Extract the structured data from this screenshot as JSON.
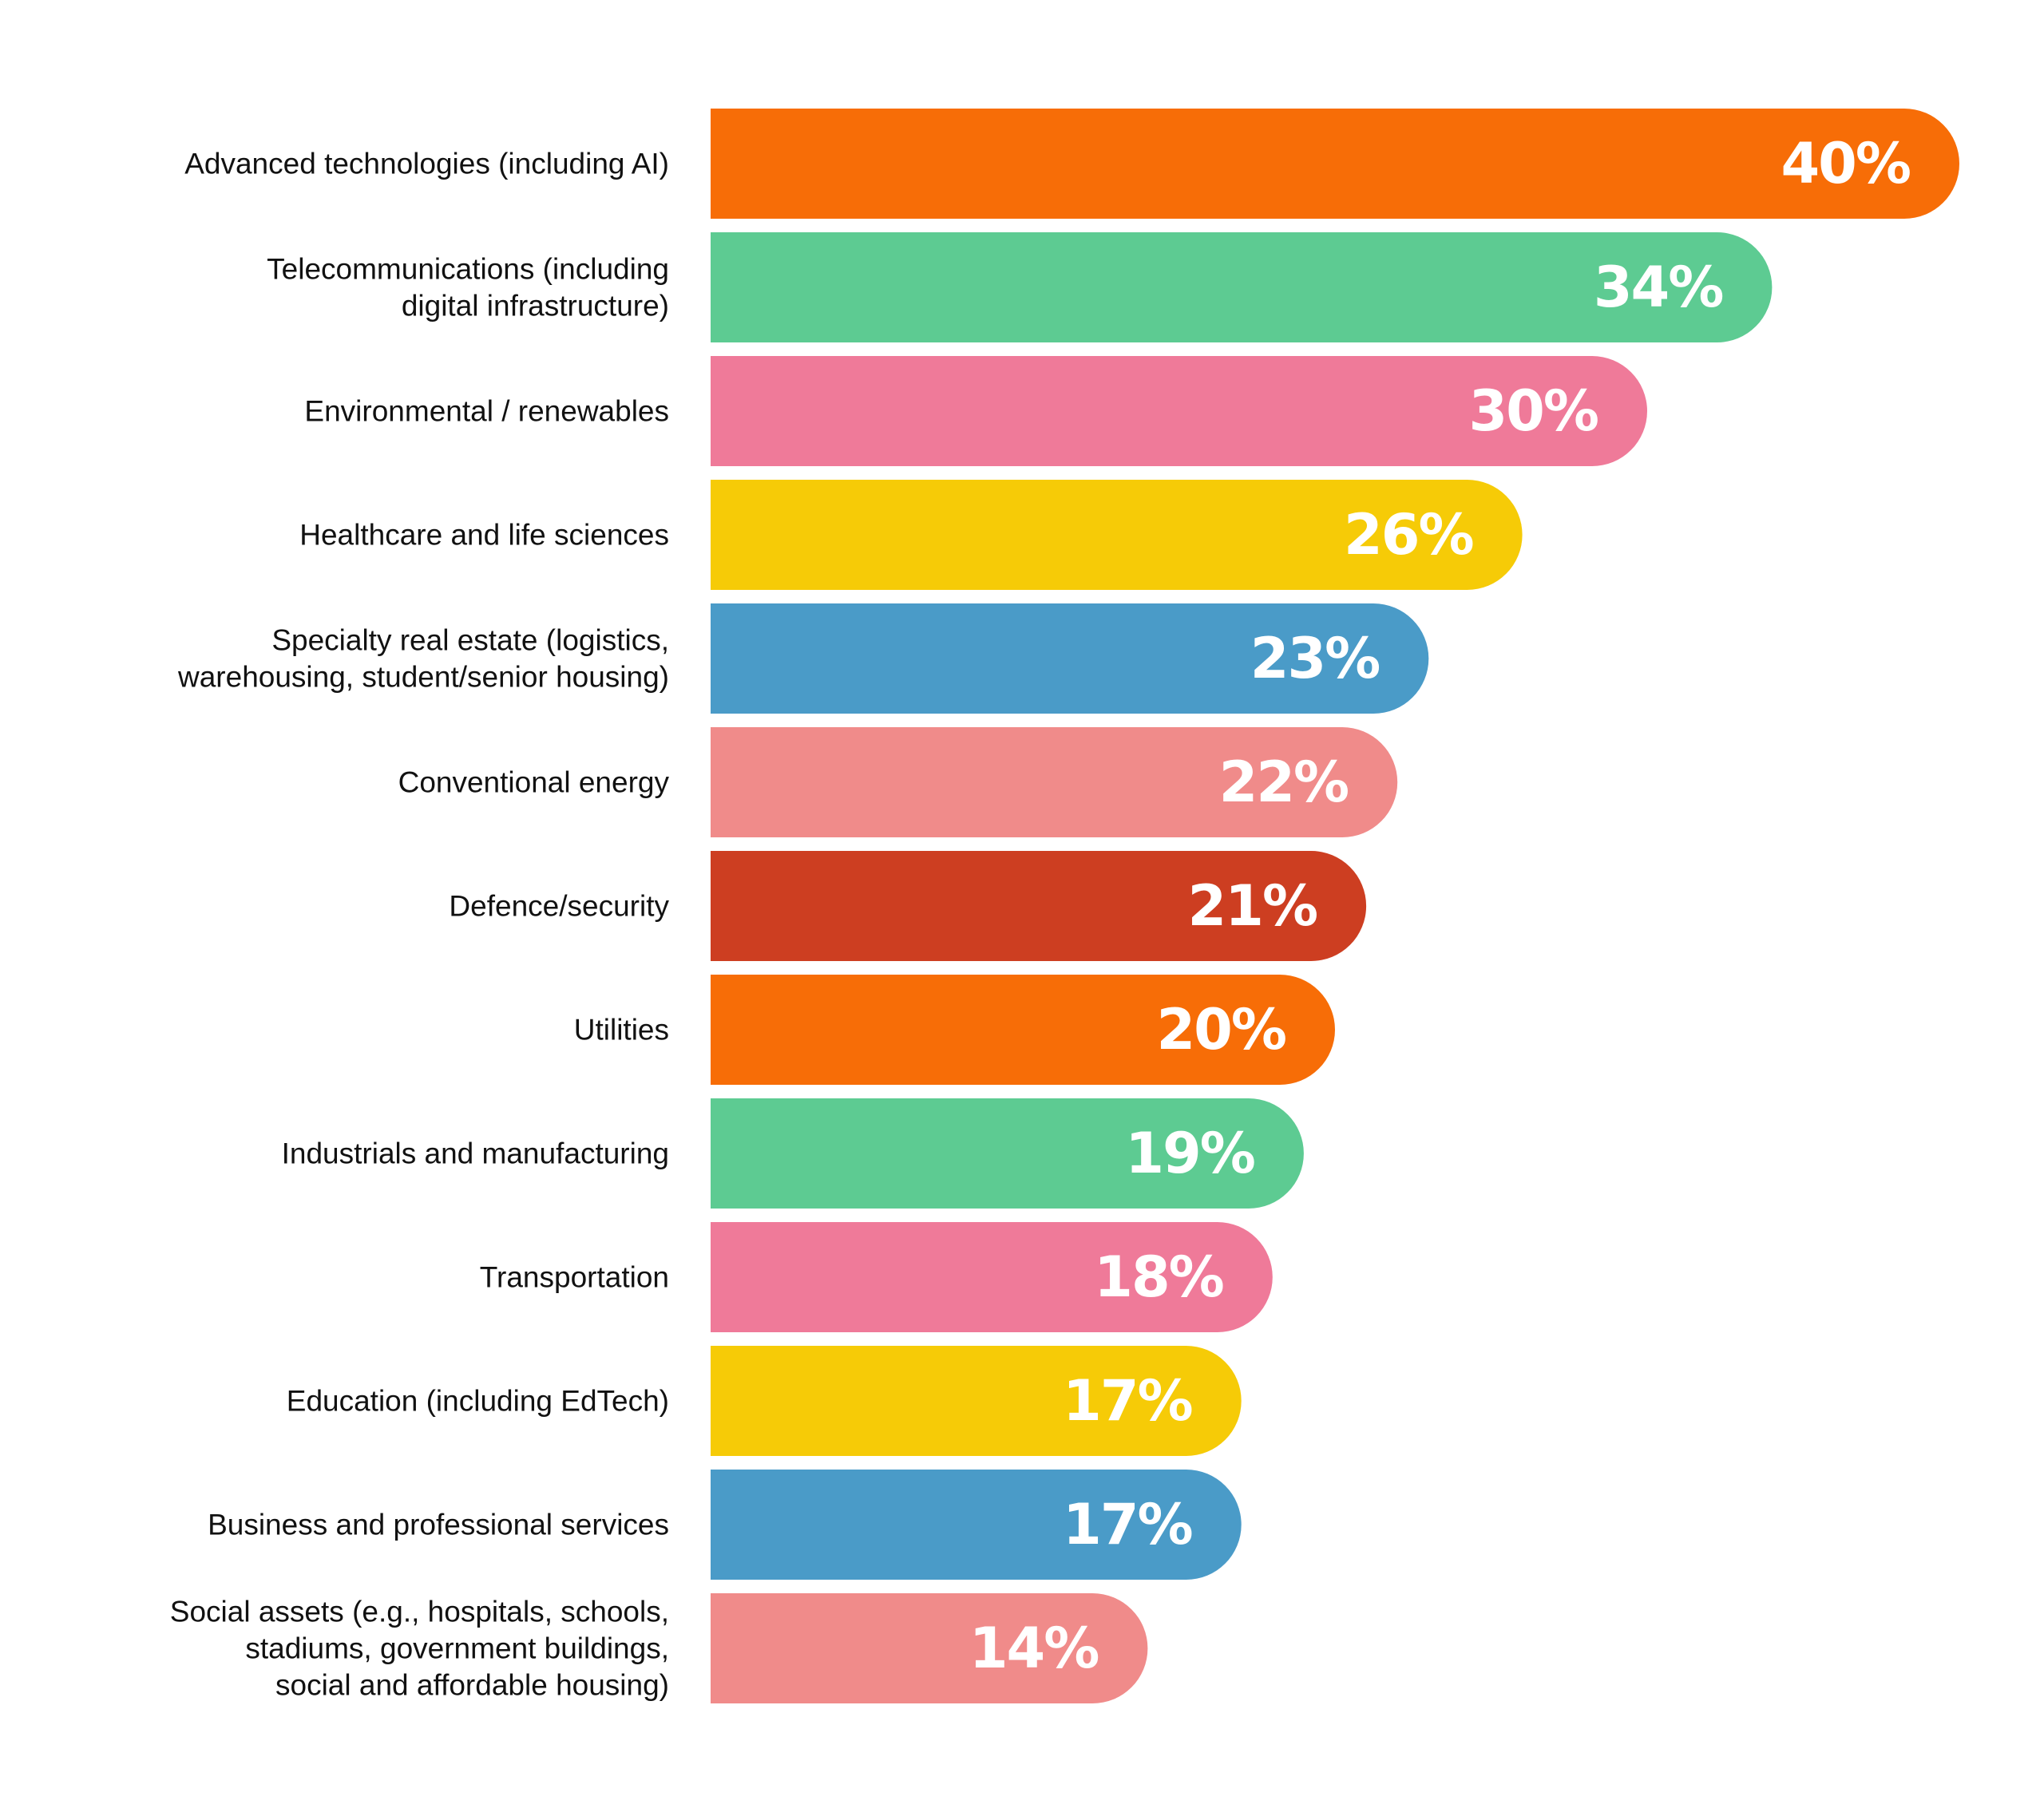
{
  "chart_data": {
    "type": "bar",
    "orientation": "horizontal",
    "title": "",
    "xlabel": "",
    "ylabel": "",
    "value_suffix": "%",
    "xlim": [
      0,
      40
    ],
    "grid": false,
    "legend": "none",
    "categories": [
      [
        "Advanced technologies (including AI)"
      ],
      [
        "Telecommunications (including",
        "digital infrastructure)"
      ],
      [
        "Environmental / renewables"
      ],
      [
        "Healthcare and life sciences"
      ],
      [
        "Specialty real estate (logistics,",
        "warehousing, student/senior housing)"
      ],
      [
        "Conventional energy"
      ],
      [
        "Defence/security"
      ],
      [
        "Utilities"
      ],
      [
        "Industrials and manufacturing"
      ],
      [
        "Transportation"
      ],
      [
        "Education (including EdTech)"
      ],
      [
        "Business and professional services"
      ],
      [
        "Social assets (e.g., hospitals, schools,",
        "stadiums, government buildings,",
        "social and affordable housing)"
      ]
    ],
    "values": [
      40,
      34,
      30,
      26,
      23,
      22,
      21,
      20,
      19,
      18,
      17,
      17,
      14
    ],
    "value_labels": [
      "40%",
      "34%",
      "30%",
      "26%",
      "23%",
      "22%",
      "21%",
      "20%",
      "19%",
      "18%",
      "17%",
      "17%",
      "14%"
    ],
    "colors": [
      "#F76D07",
      "#5DCB92",
      "#EF7A99",
      "#F6CB07",
      "#4A9BC8",
      "#F08B8A",
      "#CD3E21",
      "#F76D07",
      "#5DCB92",
      "#EF7A99",
      "#F6CB07",
      "#4A9BC8",
      "#F08B8A"
    ]
  }
}
